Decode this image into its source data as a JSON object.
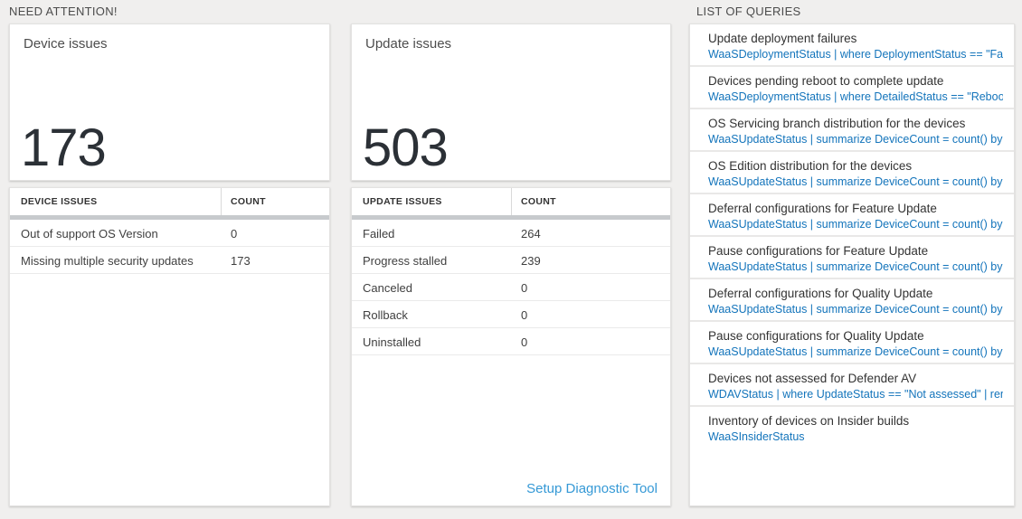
{
  "sections": {
    "need_attention": {
      "title": "NEED ATTENTION!"
    },
    "queries": {
      "title": "LIST OF QUERIES"
    }
  },
  "device_card": {
    "title": "Device issues",
    "count": "173",
    "table": {
      "headers": [
        "DEVICE ISSUES",
        "COUNT"
      ],
      "rows": [
        {
          "label": "Out of support OS Version",
          "count": "0"
        },
        {
          "label": "Missing multiple security updates",
          "count": "173"
        }
      ]
    }
  },
  "update_card": {
    "title": "Update issues",
    "count": "503",
    "table": {
      "headers": [
        "UPDATE ISSUES",
        "COUNT"
      ],
      "rows": [
        {
          "label": "Failed",
          "count": "264"
        },
        {
          "label": "Progress stalled",
          "count": "239"
        },
        {
          "label": "Canceled",
          "count": "0"
        },
        {
          "label": "Rollback",
          "count": "0"
        },
        {
          "label": "Uninstalled",
          "count": "0"
        }
      ]
    },
    "diagnostic_link": "Setup Diagnostic Tool"
  },
  "queries_list": {
    "items": [
      {
        "title": "Update deployment failures",
        "query": "WaaSDeploymentStatus | where DeploymentStatus == \"Failed\" |..."
      },
      {
        "title": "Devices pending reboot to complete update",
        "query": "WaaSDeploymentStatus | where DetailedStatus == \"Reboot pend..."
      },
      {
        "title": "OS Servicing branch distribution for the devices",
        "query": "WaaSUpdateStatus | summarize DeviceCount = count() by OSSer..."
      },
      {
        "title": "OS Edition distribution for the devices",
        "query": "WaaSUpdateStatus | summarize DeviceCount = count() by OSEdit..."
      },
      {
        "title": "Deferral configurations for Feature Update",
        "query": "WaaSUpdateStatus | summarize DeviceCount = count() by Featur..."
      },
      {
        "title": "Pause configurations for Feature Update",
        "query": "WaaSUpdateStatus | summarize DeviceCount = count() by Featur..."
      },
      {
        "title": "Deferral configurations for Quality Update",
        "query": "WaaSUpdateStatus | summarize DeviceCount = count() by Qualit..."
      },
      {
        "title": "Pause configurations for Quality Update",
        "query": "WaaSUpdateStatus | summarize DeviceCount = count() by Qualit..."
      },
      {
        "title": "Devices not assessed for Defender AV",
        "query": "WDAVStatus | where UpdateStatus == \"Not assessed\" | render ta..."
      },
      {
        "title": "Inventory of devices on Insider builds",
        "query": "WaaSInsiderStatus"
      }
    ]
  },
  "colors": {
    "page_background": "#f0efee",
    "card_background": "#ffffff",
    "query_link_blue": "#1374bb",
    "diagnostic_link_blue": "#3599d6",
    "big_number_text": "#2b3036",
    "table_header_bar": "#c7cacd"
  }
}
